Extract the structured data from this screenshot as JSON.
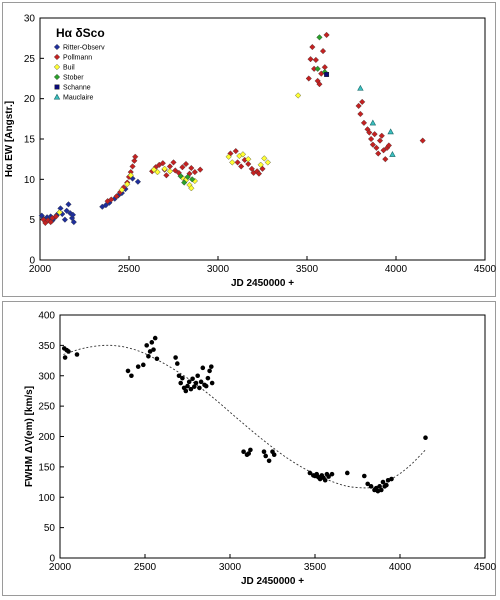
{
  "chart_data": [
    {
      "type": "scatter",
      "legend_title": "Hα δSco",
      "xlabel": "JD 2450000 +",
      "ylabel": "Hα EW [Angstr.]",
      "xlim": [
        2000,
        4500
      ],
      "ylim": [
        0,
        30
      ],
      "xticks": [
        2000,
        2500,
        3000,
        3500,
        4000,
        4500
      ],
      "yticks": [
        0,
        5,
        10,
        15,
        20,
        25,
        30
      ],
      "grid": false,
      "legend_position": "top-left",
      "series": [
        {
          "name": "Ritter-Observ",
          "marker": "diamond",
          "color": "#1f2f9c",
          "points": [
            [
              2010,
              5.5
            ],
            [
              2020,
              5.1
            ],
            [
              2030,
              4.8
            ],
            [
              2040,
              5.3
            ],
            [
              2050,
              5.0
            ],
            [
              2060,
              5.4
            ],
            [
              2070,
              4.9
            ],
            [
              2080,
              5.2
            ],
            [
              2095,
              5.6
            ],
            [
              2105,
              5.8
            ],
            [
              2115,
              6.4
            ],
            [
              2125,
              5.7
            ],
            [
              2140,
              5.0
            ],
            [
              2150,
              6.1
            ],
            [
              2160,
              6.9
            ],
            [
              2170,
              5.8
            ],
            [
              2180,
              5.2
            ],
            [
              2185,
              5.6
            ],
            [
              2190,
              4.7
            ],
            [
              2350,
              6.6
            ],
            [
              2370,
              6.8
            ],
            [
              2390,
              7.1
            ],
            [
              2420,
              7.6
            ],
            [
              2440,
              8.0
            ],
            [
              2460,
              8.3
            ],
            [
              2480,
              8.8
            ],
            [
              2520,
              10.1
            ],
            [
              2550,
              9.7
            ]
          ]
        },
        {
          "name": "Pollmann",
          "marker": "diamond",
          "color": "#c42121",
          "points": [
            [
              2020,
              5.0
            ],
            [
              2030,
              4.6
            ],
            [
              2045,
              4.9
            ],
            [
              2060,
              4.7
            ],
            [
              2070,
              5.2
            ],
            [
              2090,
              5.4
            ],
            [
              2380,
              7.3
            ],
            [
              2400,
              7.5
            ],
            [
              2430,
              7.9
            ],
            [
              2450,
              8.4
            ],
            [
              2470,
              9.0
            ],
            [
              2490,
              9.6
            ],
            [
              2500,
              10.3
            ],
            [
              2510,
              10.9
            ],
            [
              2520,
              11.6
            ],
            [
              2530,
              12.3
            ],
            [
              2535,
              12.8
            ],
            [
              2630,
              11.0
            ],
            [
              2650,
              11.5
            ],
            [
              2670,
              11.8
            ],
            [
              2690,
              12.0
            ],
            [
              2700,
              11.2
            ],
            [
              2710,
              10.5
            ],
            [
              2730,
              11.6
            ],
            [
              2750,
              12.1
            ],
            [
              2760,
              11.1
            ],
            [
              2780,
              10.8
            ],
            [
              2800,
              11.5
            ],
            [
              2820,
              11.9
            ],
            [
              2840,
              10.7
            ],
            [
              2850,
              11.4
            ],
            [
              2870,
              10.9
            ],
            [
              2900,
              11.2
            ],
            [
              3070,
              13.2
            ],
            [
              3100,
              13.5
            ],
            [
              3110,
              12.1
            ],
            [
              3130,
              11.6
            ],
            [
              3150,
              12.4
            ],
            [
              3170,
              11.9
            ],
            [
              3190,
              11.3
            ],
            [
              3200,
              10.8
            ],
            [
              3220,
              11.0
            ],
            [
              3230,
              10.7
            ],
            [
              3250,
              11.3
            ],
            [
              3510,
              22.5
            ],
            [
              3520,
              24.9
            ],
            [
              3530,
              26.4
            ],
            [
              3540,
              23.7
            ],
            [
              3550,
              24.8
            ],
            [
              3560,
              22.2
            ],
            [
              3570,
              21.8
            ],
            [
              3580,
              23.1
            ],
            [
              3590,
              25.9
            ],
            [
              3600,
              23.9
            ],
            [
              3610,
              27.9
            ],
            [
              3790,
              19.1
            ],
            [
              3800,
              18.1
            ],
            [
              3810,
              19.6
            ],
            [
              3820,
              17.0
            ],
            [
              3840,
              16.2
            ],
            [
              3850,
              15.8
            ],
            [
              3860,
              15.0
            ],
            [
              3870,
              14.3
            ],
            [
              3880,
              15.6
            ],
            [
              3890,
              13.9
            ],
            [
              3900,
              13.2
            ],
            [
              3910,
              14.8
            ],
            [
              3920,
              15.4
            ],
            [
              3930,
              13.6
            ],
            [
              3940,
              12.5
            ],
            [
              3950,
              13.9
            ],
            [
              3960,
              14.2
            ],
            [
              4150,
              14.8
            ]
          ]
        },
        {
          "name": "Buil",
          "marker": "diamond",
          "color": "#ffff33",
          "points": [
            [
              2110,
              5.9
            ],
            [
              2460,
              8.7
            ],
            [
              2490,
              9.4
            ],
            [
              2510,
              10.5
            ],
            [
              2640,
              11.2
            ],
            [
              2660,
              10.9
            ],
            [
              2700,
              11.3
            ],
            [
              2730,
              11.0
            ],
            [
              2800,
              10.2
            ],
            [
              2820,
              9.9
            ],
            [
              2840,
              9.3
            ],
            [
              2850,
              8.9
            ],
            [
              2870,
              9.8
            ],
            [
              3060,
              12.8
            ],
            [
              3080,
              12.1
            ],
            [
              3120,
              12.9
            ],
            [
              3140,
              13.1
            ],
            [
              3170,
              12.5
            ],
            [
              3240,
              11.8
            ],
            [
              3260,
              12.6
            ],
            [
              3280,
              12.1
            ],
            [
              3450,
              20.4
            ]
          ]
        },
        {
          "name": "Stober",
          "marker": "diamond",
          "color": "#2aa02a",
          "points": [
            [
              2790,
              10.4
            ],
            [
              2810,
              9.6
            ],
            [
              2830,
              10.3
            ],
            [
              2855,
              10.0
            ],
            [
              3560,
              23.7
            ],
            [
              3570,
              27.6
            ],
            [
              3600,
              23.3
            ]
          ]
        },
        {
          "name": "Schanne",
          "marker": "square",
          "color": "#0a0a7a",
          "points": [
            [
              3610,
              23.0
            ]
          ]
        },
        {
          "name": "Mauclaire",
          "marker": "triangle",
          "color": "#3bbfbf",
          "points": [
            [
              3800,
              21.3
            ],
            [
              3870,
              17.0
            ],
            [
              3970,
              15.9
            ],
            [
              3980,
              13.1
            ]
          ]
        }
      ]
    },
    {
      "type": "scatter",
      "xlabel": "JD 2450000 +",
      "ylabel": "FWHM ΔV(em) [km/s]",
      "xlim": [
        2000,
        4500
      ],
      "ylim": [
        0,
        400
      ],
      "xticks": [
        2000,
        2500,
        3000,
        3500,
        4000,
        4500
      ],
      "yticks": [
        0,
        50,
        100,
        150,
        200,
        250,
        300,
        350,
        400
      ],
      "grid": false,
      "points": [
        [
          2025,
          345
        ],
        [
          2030,
          330
        ],
        [
          2040,
          342
        ],
        [
          2050,
          340
        ],
        [
          2100,
          335
        ],
        [
          2400,
          308
        ],
        [
          2420,
          300
        ],
        [
          2460,
          315
        ],
        [
          2490,
          318
        ],
        [
          2510,
          350
        ],
        [
          2520,
          332
        ],
        [
          2530,
          340
        ],
        [
          2540,
          355
        ],
        [
          2550,
          343
        ],
        [
          2560,
          362
        ],
        [
          2570,
          328
        ],
        [
          2680,
          330
        ],
        [
          2690,
          320
        ],
        [
          2700,
          300
        ],
        [
          2710,
          288
        ],
        [
          2720,
          296
        ],
        [
          2730,
          280
        ],
        [
          2740,
          275
        ],
        [
          2750,
          283
        ],
        [
          2760,
          290
        ],
        [
          2770,
          278
        ],
        [
          2780,
          295
        ],
        [
          2790,
          282
        ],
        [
          2800,
          288
        ],
        [
          2810,
          300
        ],
        [
          2820,
          280
        ],
        [
          2830,
          290
        ],
        [
          2840,
          313
        ],
        [
          2850,
          285
        ],
        [
          2860,
          283
        ],
        [
          2870,
          296
        ],
        [
          2880,
          308
        ],
        [
          2890,
          315
        ],
        [
          2895,
          288
        ],
        [
          3080,
          175
        ],
        [
          3100,
          170
        ],
        [
          3110,
          172
        ],
        [
          3120,
          178
        ],
        [
          3200,
          175
        ],
        [
          3210,
          168
        ],
        [
          3230,
          160
        ],
        [
          3250,
          175
        ],
        [
          3260,
          170
        ],
        [
          3470,
          140
        ],
        [
          3490,
          136
        ],
        [
          3500,
          135
        ],
        [
          3510,
          138
        ],
        [
          3520,
          133
        ],
        [
          3530,
          130
        ],
        [
          3540,
          136
        ],
        [
          3550,
          132
        ],
        [
          3560,
          128
        ],
        [
          3570,
          138
        ],
        [
          3580,
          134
        ],
        [
          3600,
          138
        ],
        [
          3690,
          140
        ],
        [
          3790,
          135
        ],
        [
          3810,
          122
        ],
        [
          3830,
          118
        ],
        [
          3850,
          112
        ],
        [
          3860,
          115
        ],
        [
          3870,
          110
        ],
        [
          3880,
          118
        ],
        [
          3890,
          112
        ],
        [
          3900,
          125
        ],
        [
          3910,
          118
        ],
        [
          3920,
          120
        ],
        [
          3930,
          128
        ],
        [
          3950,
          130
        ],
        [
          4150,
          198
        ]
      ],
      "fit_curve": [
        [
          2020,
          335
        ],
        [
          2150,
          346
        ],
        [
          2300,
          350
        ],
        [
          2450,
          342
        ],
        [
          2600,
          322
        ],
        [
          2750,
          296
        ],
        [
          2900,
          264
        ],
        [
          3050,
          228
        ],
        [
          3200,
          193
        ],
        [
          3350,
          162
        ],
        [
          3500,
          138
        ],
        [
          3650,
          121
        ],
        [
          3750,
          116
        ],
        [
          3850,
          117
        ],
        [
          3950,
          130
        ],
        [
          4050,
          150
        ],
        [
          4150,
          178
        ]
      ]
    }
  ]
}
